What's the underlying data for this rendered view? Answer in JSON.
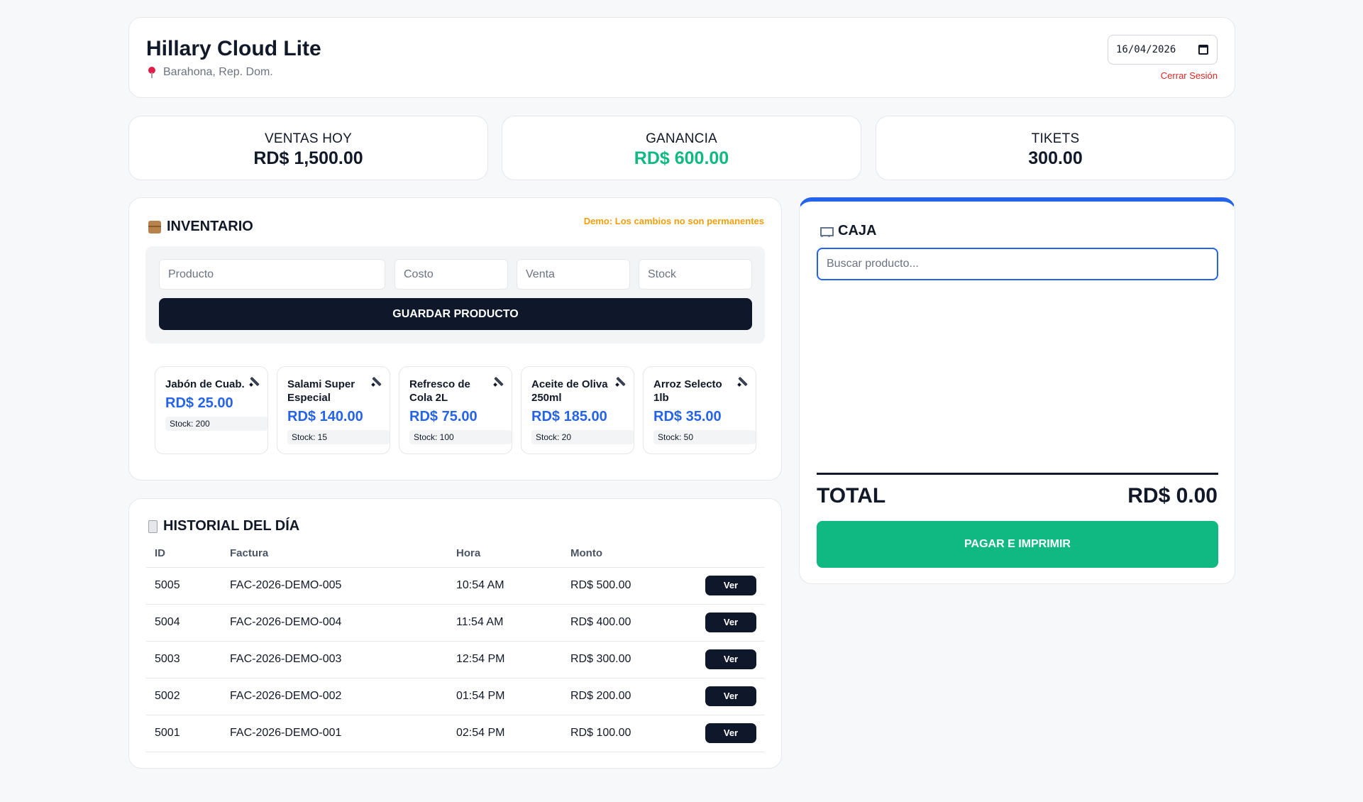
{
  "header": {
    "title": "Hillary Cloud Lite",
    "location": "Barahona, Rep. Dom.",
    "date_value": "16/04/2026",
    "logout_label": "Cerrar Sesión"
  },
  "stats": [
    {
      "label": "VENTAS HOY",
      "value": "RD$ 1,500.00"
    },
    {
      "label": "GANANCIA",
      "value": "RD$ 600.00",
      "color": "#10b981"
    },
    {
      "label": "TIKETS",
      "value": "300.00"
    }
  ],
  "inventory": {
    "title": "INVENTARIO",
    "demo_note": "Demo: Los cambios no son permanentes",
    "placeholders": {
      "product": "Producto",
      "cost": "Costo",
      "sale": "Venta",
      "stock": "Stock"
    },
    "save_label": "GUARDAR PRODUCTO",
    "products": [
      {
        "name": "Jabón de Cuab.",
        "price": "RD$ 25.00",
        "stock": "Stock: 200"
      },
      {
        "name": "Salami Super Especial",
        "price": "RD$ 140.00",
        "stock": "Stock: 15"
      },
      {
        "name": "Refresco de Cola 2L",
        "price": "RD$ 75.00",
        "stock": "Stock: 100"
      },
      {
        "name": "Aceite de Oliva 250ml",
        "price": "RD$ 185.00",
        "stock": "Stock: 20"
      },
      {
        "name": "Arroz Selecto 1lb",
        "price": "RD$ 35.00",
        "stock": "Stock: 50"
      }
    ]
  },
  "history": {
    "title": "HISTORIAL DEL DÍA",
    "columns": [
      "ID",
      "Factura",
      "Hora",
      "Monto"
    ],
    "rows": [
      {
        "id": "5005",
        "invoice": "FAC-2026-DEMO-005",
        "time": "10:54 AM",
        "amount": "RD$ 500.00",
        "action": "Ver"
      },
      {
        "id": "5004",
        "invoice": "FAC-2026-DEMO-004",
        "time": "11:54 AM",
        "amount": "RD$ 400.00",
        "action": "Ver"
      },
      {
        "id": "5003",
        "invoice": "FAC-2026-DEMO-003",
        "time": "12:54 PM",
        "amount": "RD$ 300.00",
        "action": "Ver"
      },
      {
        "id": "5002",
        "invoice": "FAC-2026-DEMO-002",
        "time": "01:54 PM",
        "amount": "RD$ 200.00",
        "action": "Ver"
      },
      {
        "id": "5001",
        "invoice": "FAC-2026-DEMO-001",
        "time": "02:54 PM",
        "amount": "RD$ 100.00",
        "action": "Ver"
      }
    ]
  },
  "caja": {
    "title": "CAJA",
    "search_placeholder": "Buscar producto...",
    "total_label": "TOTAL",
    "total_value": "RD$ 0.00",
    "pay_label": "PAGAR E IMPRIMIR"
  },
  "icons": [
    "pin-icon",
    "calendar-icon",
    "box-icon",
    "edit-icon",
    "receipt-icon",
    "cart-icon"
  ],
  "colors": {
    "primary_dark": "#0f172a",
    "accent_blue": "#2563eb",
    "success_green": "#10b981",
    "warning_orange": "#f59e0b",
    "danger_red": "#dc2626"
  }
}
